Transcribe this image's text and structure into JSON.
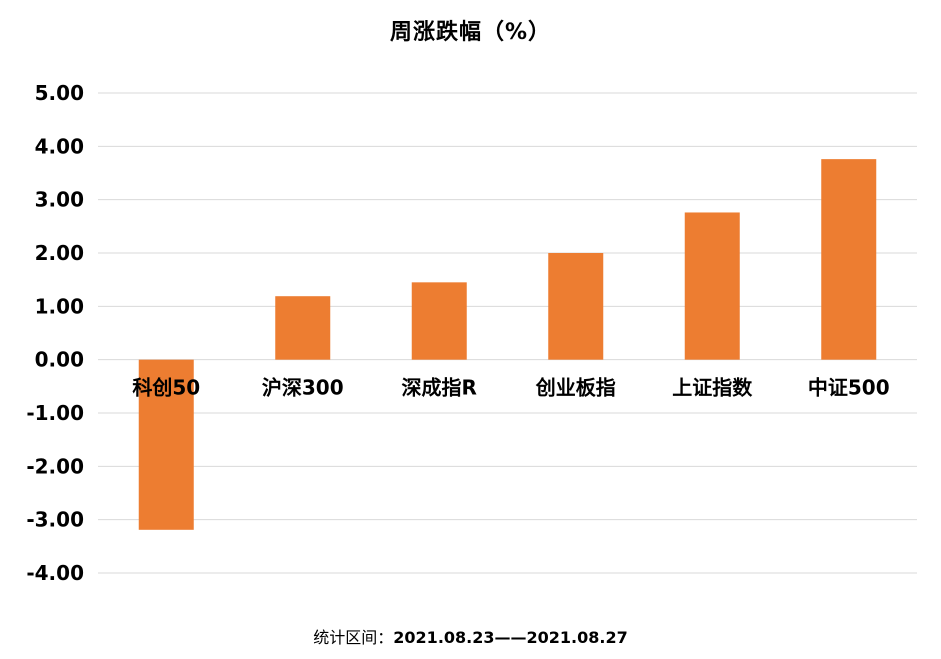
{
  "chart_data": {
    "type": "bar",
    "title": "周涨跌幅（%）",
    "categories": [
      "科创50",
      "沪深300",
      "深成指R",
      "创业板指",
      "上证指数",
      "中证500"
    ],
    "values": [
      -3.19,
      1.19,
      1.45,
      2.0,
      2.76,
      3.76
    ],
    "ylim": [
      -4.0,
      5.0
    ],
    "yticks": [
      "5.00",
      "4.00",
      "3.00",
      "2.00",
      "1.00",
      "0.00",
      "-1.00",
      "-2.00",
      "-3.00",
      "-4.00"
    ],
    "bar_color": "#ED7D31",
    "grid": true,
    "legend": "none"
  },
  "footnote": {
    "label": "统计区间：",
    "range": "2021.08.23——2021.08.27"
  },
  "colors": {
    "bar": "#ED7D31",
    "grid": "#D9D9D9",
    "text": "#000000"
  }
}
